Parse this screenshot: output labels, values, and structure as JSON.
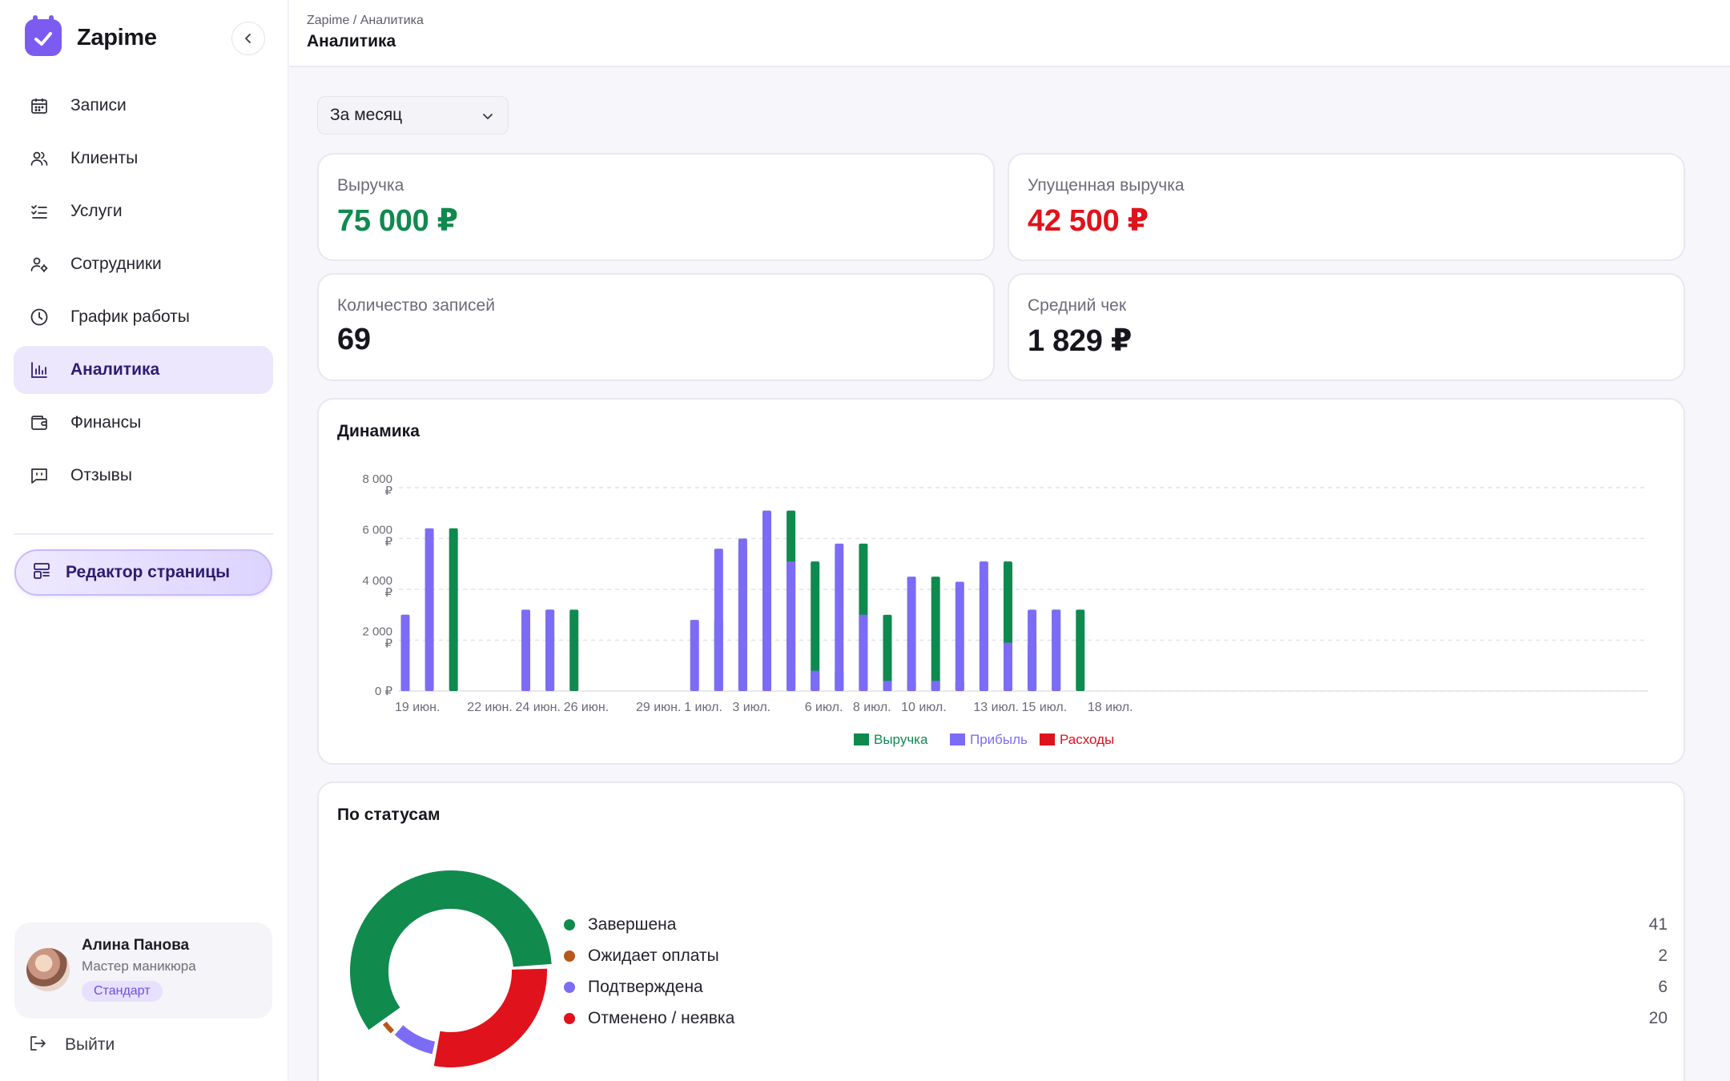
{
  "app": {
    "name": "Zapime"
  },
  "sidebar": {
    "items": [
      {
        "label": "Записи",
        "icon": "calendar-icon"
      },
      {
        "label": "Клиенты",
        "icon": "users-icon"
      },
      {
        "label": "Услуги",
        "icon": "checklist-icon"
      },
      {
        "label": "Сотрудники",
        "icon": "user-settings-icon"
      },
      {
        "label": "График работы",
        "icon": "clock-icon"
      },
      {
        "label": "Аналитика",
        "icon": "bar-chart-icon",
        "active": true
      },
      {
        "label": "Финансы",
        "icon": "wallet-icon"
      },
      {
        "label": "Отзывы",
        "icon": "message-icon"
      }
    ],
    "editor_label": "Редактор страницы",
    "profile": {
      "name": "Алина Панова",
      "role": "Мастер маникюра",
      "plan": "Стандарт"
    },
    "logout_label": "Выйти"
  },
  "header": {
    "breadcrumb_root": "Zapime",
    "breadcrumb_sep": "/",
    "breadcrumb_current": "Аналитика",
    "title": "Аналитика"
  },
  "filters": {
    "period": "За месяц"
  },
  "kpis": {
    "revenue": {
      "label": "Выручка",
      "value": "75 000 ₽",
      "color": "#0f8a4f"
    },
    "lost": {
      "label": "Упущенная выручка",
      "value": "42 500 ₽",
      "color": "#e0121b"
    },
    "count": {
      "label": "Количество записей",
      "value": "69"
    },
    "avg": {
      "label": "Средний чек",
      "value": "1 829 ₽"
    }
  },
  "dynamics": {
    "title": "Динамика",
    "chart_data": {
      "type": "bar",
      "x_start": "19 июн.",
      "x_end": "18 июл.",
      "x_ticks": [
        "19 июн.",
        "22 июн.",
        "24 июн.",
        "26 июн.",
        "29 июн.",
        "1 июл.",
        "3 июл.",
        "6 июл.",
        "8 июл.",
        "10 июл.",
        "13 июл.",
        "15 июл.",
        "18 июл."
      ],
      "y_ticks": [
        "0 ₽",
        "2 000 ₽",
        "4 000 ₽",
        "6 000 ₽",
        "8 000 ₽"
      ],
      "ylim": [
        0,
        8000
      ],
      "grid": true,
      "legend_position": "bottom",
      "series": [
        {
          "name": "Выручка",
          "color": "#0f8a4f",
          "values": [
            3000,
            0,
            6400,
            0,
            0,
            0,
            3200,
            3200,
            0,
            0,
            0,
            0,
            0,
            2800,
            5600,
            6000,
            7100,
            5100,
            800,
            5800,
            3000,
            400,
            4500,
            400,
            4300,
            5100,
            1900,
            3200,
            3200,
            0,
            0,
            0,
            0,
            0,
            0,
            0,
            0,
            0,
            0,
            0
          ]
        },
        {
          "name": "Прибыль",
          "color": "#7c6cf5",
          "values": [
            3000,
            6400,
            0,
            0,
            0,
            3200,
            3200,
            0,
            0,
            0,
            0,
            0,
            2800,
            5600,
            6000,
            7100,
            5100,
            800,
            5800,
            3000,
            400,
            4500,
            400,
            4300,
            5100,
            1900,
            3200,
            3200,
            0,
            0,
            0,
            0,
            0,
            0,
            0,
            0,
            0,
            0,
            0,
            0
          ]
        },
        {
          "name": "Расходы",
          "color": "#e0121b",
          "values": []
        }
      ]
    }
  },
  "statuses": {
    "title": "По статусам",
    "chart_data": {
      "type": "pie",
      "items": [
        {
          "label": "Завершена",
          "value": 41,
          "color": "#118a4e"
        },
        {
          "label": "Ожидает оплаты",
          "value": 2,
          "color": "#b8581a"
        },
        {
          "label": "Подтверждена",
          "value": 6,
          "color": "#7c6cf5"
        },
        {
          "label": "Отменено / неявка",
          "value": 20,
          "color": "#e0121b"
        }
      ]
    }
  }
}
